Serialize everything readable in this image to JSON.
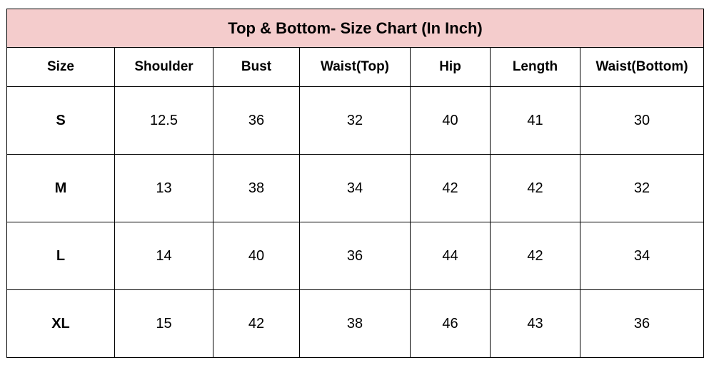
{
  "table": {
    "title": "Top & Bottom- Size Chart (In Inch)",
    "header_color": "#f4cccc",
    "columns": [
      "Size",
      "Shoulder",
      "Bust",
      "Waist(Top)",
      "Hip",
      "Length",
      "Waist(Bottom)"
    ],
    "rows": [
      [
        "S",
        "12.5",
        "36",
        "32",
        "40",
        "41",
        "30"
      ],
      [
        "M",
        "13",
        "38",
        "34",
        "42",
        "42",
        "32"
      ],
      [
        "L",
        "14",
        "40",
        "36",
        "44",
        "42",
        "34"
      ],
      [
        "XL",
        "15",
        "42",
        "38",
        "46",
        "43",
        "36"
      ]
    ]
  }
}
